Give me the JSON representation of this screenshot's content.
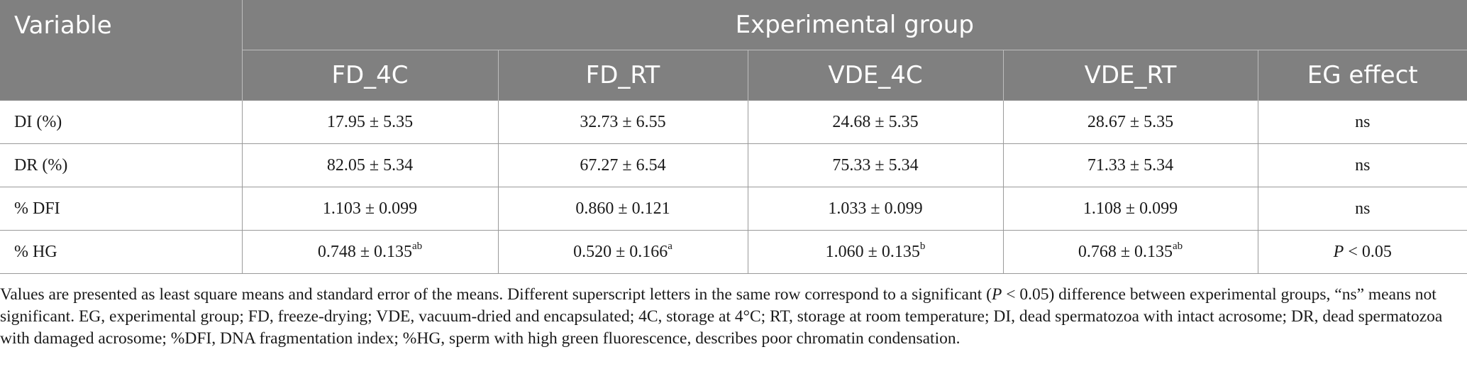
{
  "table": {
    "headers": {
      "variable": "Variable",
      "group": "Experimental group",
      "columns": [
        "FD_4C",
        "FD_RT",
        "VDE_4C",
        "VDE_RT",
        "EG effect"
      ]
    },
    "rows": [
      {
        "label": "DI (%)",
        "cells": [
          {
            "value": "17.95 ± 5.35",
            "sup": ""
          },
          {
            "value": "32.73 ± 6.55",
            "sup": ""
          },
          {
            "value": "24.68 ± 5.35",
            "sup": ""
          },
          {
            "value": "28.67 ± 5.35",
            "sup": ""
          }
        ],
        "effect": "ns"
      },
      {
        "label": "DR (%)",
        "cells": [
          {
            "value": "82.05 ± 5.34",
            "sup": ""
          },
          {
            "value": "67.27 ± 6.54",
            "sup": ""
          },
          {
            "value": "75.33 ± 5.34",
            "sup": ""
          },
          {
            "value": "71.33 ± 5.34",
            "sup": ""
          }
        ],
        "effect": "ns"
      },
      {
        "label": "% DFI",
        "cells": [
          {
            "value": "1.103 ± 0.099",
            "sup": ""
          },
          {
            "value": "0.860 ± 0.121",
            "sup": ""
          },
          {
            "value": "1.033 ± 0.099",
            "sup": ""
          },
          {
            "value": "1.108 ± 0.099",
            "sup": ""
          }
        ],
        "effect": "ns"
      },
      {
        "label": "% HG",
        "cells": [
          {
            "value": "0.748 ± 0.135",
            "sup": "ab"
          },
          {
            "value": "0.520 ± 0.166",
            "sup": "a"
          },
          {
            "value": "1.060 ± 0.135",
            "sup": "b"
          },
          {
            "value": "0.768 ± 0.135",
            "sup": "ab"
          }
        ],
        "effect_p": "P",
        "effect": " < 0.05"
      }
    ]
  },
  "footnote": {
    "part1": "Values are presented as least square means and standard error of the means. Different superscript letters in the same row correspond to a significant (",
    "p": "P",
    "part2": " < 0.05) difference between experimental groups, “ns” means not significant. EG, experimental group; FD, freeze-drying; VDE, vacuum-dried and encapsulated; 4C, storage at 4°C; RT, storage at room temperature; DI, dead spermatozoa with intact acrosome; DR, dead spermatozoa with damaged acrosome; %DFI, DNA fragmentation index; %HG, sperm with high green fluorescence, describes poor chromatin condensation."
  }
}
